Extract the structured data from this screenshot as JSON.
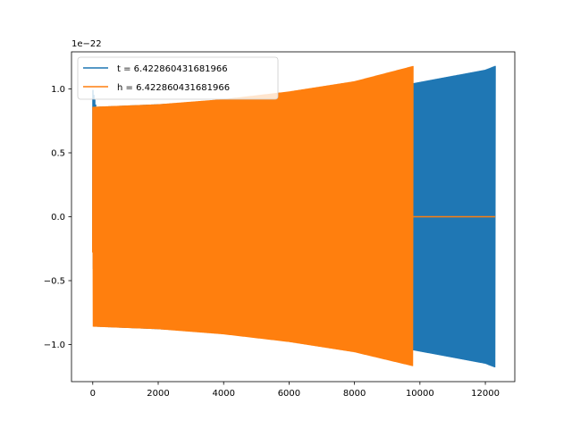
{
  "chart_data": {
    "type": "line",
    "title": "",
    "xlabel": "",
    "ylabel": "",
    "y_offset_label": "1e−22",
    "xlim": [
      -650,
      12900
    ],
    "ylim": [
      -1.29,
      1.29
    ],
    "x_ticks": [
      0,
      2000,
      4000,
      6000,
      8000,
      10000,
      12000
    ],
    "x_tick_labels": [
      "0",
      "2000",
      "4000",
      "6000",
      "8000",
      "10000",
      "12000"
    ],
    "y_ticks": [
      -1.0,
      -0.5,
      0.0,
      0.5,
      1.0
    ],
    "y_tick_labels": [
      "−1.0",
      "−0.5",
      "0.0",
      "0.5",
      "1.0"
    ],
    "grid": false,
    "legend_position": "top-left",
    "series": [
      {
        "name": "t = 6.422860431681966",
        "color": "#1f77b4",
        "x_range": [
          0,
          12300
        ],
        "start_value": -0.28,
        "envelope_upper": [
          [
            0,
            1.0
          ],
          [
            100,
            0.86
          ],
          [
            2000,
            0.88
          ],
          [
            4000,
            0.91
          ],
          [
            6000,
            0.95
          ],
          [
            8000,
            1.0
          ],
          [
            9800,
            1.045
          ],
          [
            12000,
            1.15
          ],
          [
            12300,
            1.18
          ]
        ],
        "envelope_lower": [
          [
            0,
            -0.3
          ],
          [
            100,
            -0.86
          ],
          [
            2000,
            -0.88
          ],
          [
            4000,
            -0.91
          ],
          [
            6000,
            -0.95
          ],
          [
            8000,
            -1.0
          ],
          [
            9800,
            -1.045
          ],
          [
            12000,
            -1.15
          ],
          [
            12300,
            -1.18
          ]
        ]
      },
      {
        "name": "h = 6.422860431681966",
        "color": "#ff7f0e",
        "x_range": [
          0,
          12300
        ],
        "start_value": -0.28,
        "nonzero_until": 9800,
        "tail_value": 0.0,
        "envelope_upper": [
          [
            0,
            0.86
          ],
          [
            2000,
            0.88
          ],
          [
            4000,
            0.92
          ],
          [
            6000,
            0.98
          ],
          [
            8000,
            1.06
          ],
          [
            9800,
            1.18
          ]
        ],
        "envelope_lower": [
          [
            0,
            -0.86
          ],
          [
            2000,
            -0.88
          ],
          [
            4000,
            -0.92
          ],
          [
            6000,
            -0.98
          ],
          [
            8000,
            -1.06
          ],
          [
            9800,
            -1.17
          ]
        ]
      }
    ]
  }
}
